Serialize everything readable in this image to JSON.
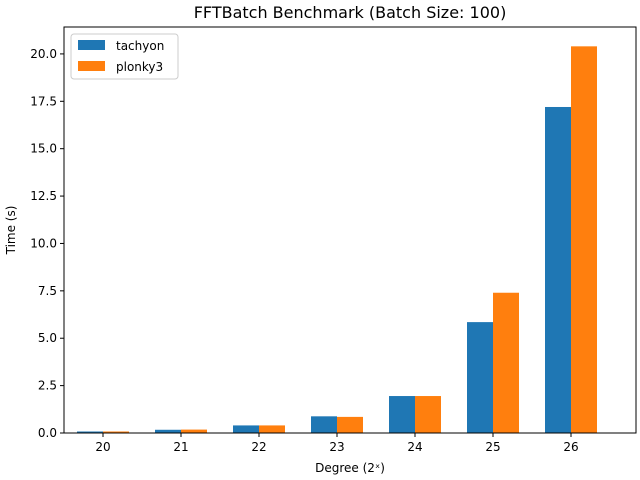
{
  "chart_data": {
    "type": "bar",
    "title": "FFTBatch Benchmark (Batch Size: 100)",
    "xlabel": "Degree (2ˣ)",
    "ylabel": "Time (s)",
    "categories": [
      "20",
      "21",
      "22",
      "23",
      "24",
      "25",
      "26"
    ],
    "series": [
      {
        "name": "tachyon",
        "color": "#1f77b4",
        "values": [
          0.08,
          0.17,
          0.4,
          0.88,
          1.95,
          5.85,
          17.2
        ]
      },
      {
        "name": "plonky3",
        "color": "#ff7f0e",
        "values": [
          0.08,
          0.18,
          0.4,
          0.85,
          1.95,
          7.4,
          20.4
        ]
      }
    ],
    "ylim": [
      0,
      21.42
    ],
    "yticks": [
      "0.0",
      "2.5",
      "5.0",
      "7.5",
      "10.0",
      "12.5",
      "15.0",
      "17.5",
      "20.0"
    ],
    "grid": false,
    "legend_position": "top-left"
  }
}
